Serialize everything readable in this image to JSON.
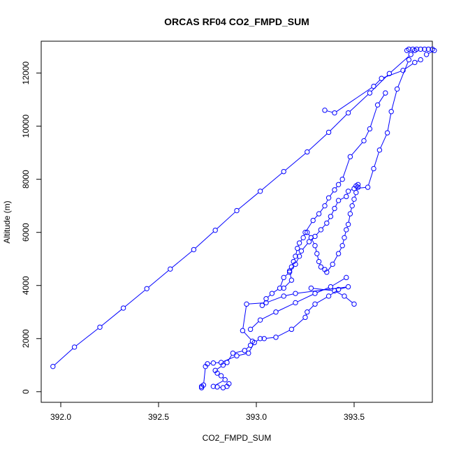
{
  "chart_data": {
    "type": "scatter",
    "title": "ORCAS RF04 CO2_FMPD_SUM",
    "xlabel": "CO2_FMPD_SUM",
    "ylabel": "Altitude (m)",
    "xlim": [
      391.9,
      393.9
    ],
    "ylim": [
      -400,
      13200
    ],
    "xticks": [
      392.0,
      392.5,
      393.0,
      393.5
    ],
    "xtick_labels": [
      "392.0",
      "392.5",
      "393.0",
      "393.5"
    ],
    "yticks": [
      0,
      2000,
      4000,
      6000,
      8000,
      10000,
      12000
    ],
    "ytick_labels": [
      "0",
      "2000",
      "4000",
      "6000",
      "8000",
      "10000",
      "12000"
    ],
    "grid": false,
    "legend": "none",
    "line_color": "#0000ff",
    "series": [
      {
        "style": "line+points",
        "points": [
          [
            392.72,
            150
          ],
          [
            392.72,
            200
          ],
          [
            392.73,
            250
          ],
          [
            392.74,
            950
          ],
          [
            392.75,
            1050
          ],
          [
            392.78,
            1080
          ],
          [
            392.82,
            1100
          ],
          [
            392.9,
            1350
          ],
          [
            392.96,
            1450
          ],
          [
            392.99,
            1850
          ],
          [
            393.02,
            2000
          ],
          [
            393.04,
            2000
          ],
          [
            393.1,
            2050
          ],
          [
            393.18,
            2350
          ],
          [
            393.25,
            2800
          ],
          [
            393.26,
            3000
          ],
          [
            393.3,
            3300
          ],
          [
            393.37,
            3600
          ],
          [
            393.42,
            3850
          ],
          [
            393.47,
            3950
          ],
          [
            393.2,
            3700
          ],
          [
            393.14,
            3600
          ],
          [
            393.05,
            3350
          ],
          [
            392.95,
            3300
          ],
          [
            392.93,
            2300
          ],
          [
            392.98,
            1900
          ],
          [
            392.97,
            1750
          ],
          [
            392.94,
            1550
          ],
          [
            392.88,
            1450
          ],
          [
            392.85,
            1100
          ],
          [
            392.83,
            1000
          ],
          [
            392.79,
            800
          ],
          [
            392.8,
            700
          ],
          [
            392.82,
            600
          ],
          [
            392.84,
            450
          ],
          [
            392.78,
            200
          ],
          [
            392.8,
            180
          ],
          [
            392.83,
            150
          ],
          [
            392.85,
            200
          ],
          [
            392.86,
            300
          ]
        ]
      },
      {
        "style": "line+points",
        "points": [
          [
            391.96,
            950
          ],
          [
            392.07,
            1680
          ],
          [
            392.2,
            2430
          ],
          [
            392.32,
            3150
          ],
          [
            392.44,
            3880
          ],
          [
            392.56,
            4620
          ],
          [
            392.68,
            5350
          ],
          [
            392.79,
            6080
          ],
          [
            392.9,
            6820
          ],
          [
            393.02,
            7550
          ],
          [
            393.14,
            8290
          ],
          [
            393.26,
            9030
          ],
          [
            393.37,
            9770
          ],
          [
            393.47,
            10500
          ],
          [
            393.58,
            11250
          ],
          [
            393.68,
            11980
          ],
          [
            393.79,
            12700
          ],
          [
            393.81,
            12850
          ]
        ]
      },
      {
        "style": "line+points",
        "points": [
          [
            393.35,
            10600
          ],
          [
            393.4,
            10500
          ],
          [
            393.6,
            11500
          ],
          [
            393.64,
            11800
          ],
          [
            393.75,
            12100
          ],
          [
            393.81,
            12400
          ],
          [
            393.84,
            12500
          ]
        ]
      },
      {
        "style": "line+points",
        "points": [
          [
            393.77,
            12850
          ],
          [
            393.78,
            12900
          ],
          [
            393.8,
            12900
          ],
          [
            393.82,
            12900
          ],
          [
            393.84,
            12900
          ],
          [
            393.86,
            12900
          ],
          [
            393.88,
            12900
          ],
          [
            393.9,
            12900
          ],
          [
            393.91,
            12850
          ],
          [
            393.87,
            12700
          ]
        ]
      },
      {
        "style": "line+points",
        "points": [
          [
            393.78,
            12500
          ],
          [
            393.72,
            11400
          ],
          [
            393.69,
            10550
          ],
          [
            393.67,
            9750
          ],
          [
            393.63,
            9100
          ],
          [
            393.6,
            8400
          ],
          [
            393.57,
            7700
          ],
          [
            393.5,
            7650
          ],
          [
            393.47,
            7550
          ],
          [
            393.46,
            7350
          ],
          [
            393.42,
            7200
          ],
          [
            393.4,
            6900
          ],
          [
            393.38,
            6600
          ],
          [
            393.36,
            6350
          ],
          [
            393.33,
            6100
          ],
          [
            393.3,
            5850
          ],
          [
            393.27,
            5650
          ],
          [
            393.23,
            5300
          ],
          [
            393.22,
            5100
          ],
          [
            393.2,
            4800
          ],
          [
            393.17,
            4550
          ],
          [
            393.18,
            4200
          ],
          [
            393.14,
            3900
          ]
        ]
      },
      {
        "style": "line+points",
        "points": [
          [
            393.66,
            11250
          ],
          [
            393.62,
            10800
          ],
          [
            393.58,
            9900
          ],
          [
            393.55,
            9450
          ],
          [
            393.48,
            8850
          ],
          [
            393.44,
            8000
          ],
          [
            393.42,
            7800
          ],
          [
            393.4,
            7600
          ],
          [
            393.37,
            7300
          ],
          [
            393.35,
            7000
          ],
          [
            393.32,
            6700
          ],
          [
            393.29,
            6450
          ],
          [
            393.25,
            6000
          ],
          [
            393.24,
            5800
          ],
          [
            393.22,
            5600
          ],
          [
            393.21,
            5400
          ],
          [
            393.2,
            5100
          ],
          [
            393.19,
            4900
          ],
          [
            393.18,
            4700
          ],
          [
            393.17,
            4500
          ],
          [
            393.14,
            4300
          ],
          [
            393.12,
            3900
          ],
          [
            393.08,
            3700
          ],
          [
            393.05,
            3500
          ],
          [
            393.03,
            3250
          ]
        ]
      },
      {
        "style": "line+points",
        "points": [
          [
            393.36,
            4500
          ],
          [
            393.39,
            4800
          ],
          [
            393.42,
            5200
          ],
          [
            393.44,
            5500
          ],
          [
            393.45,
            5800
          ],
          [
            393.46,
            6100
          ],
          [
            393.47,
            6300
          ],
          [
            393.48,
            6700
          ],
          [
            393.49,
            7000
          ],
          [
            393.5,
            7250
          ],
          [
            393.51,
            7500
          ],
          [
            393.52,
            7700
          ],
          [
            393.52,
            7800
          ],
          [
            393.51,
            7750
          ]
        ]
      },
      {
        "style": "line+points",
        "points": [
          [
            393.46,
            4300
          ],
          [
            393.38,
            3950
          ],
          [
            393.3,
            3700
          ],
          [
            393.2,
            3350
          ],
          [
            393.1,
            3000
          ],
          [
            393.02,
            2700
          ],
          [
            392.97,
            2350
          ]
        ]
      },
      {
        "style": "line+points",
        "points": [
          [
            393.5,
            3300
          ],
          [
            393.45,
            3600
          ],
          [
            393.4,
            3800
          ],
          [
            393.28,
            3900
          ]
        ]
      },
      {
        "style": "line+points",
        "points": [
          [
            393.26,
            6000
          ],
          [
            393.28,
            5800
          ],
          [
            393.3,
            5500
          ],
          [
            393.31,
            5200
          ],
          [
            393.32,
            4900
          ],
          [
            393.33,
            4700
          ],
          [
            393.35,
            4600
          ]
        ]
      }
    ]
  }
}
